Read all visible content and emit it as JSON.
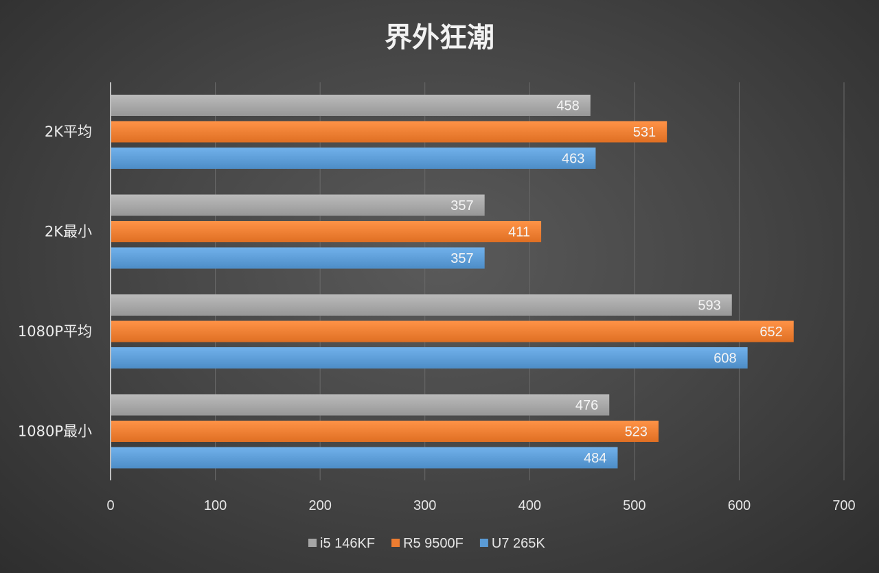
{
  "chart_data": {
    "type": "bar",
    "orientation": "horizontal",
    "title": "界外狂潮",
    "categories": [
      "2K平均",
      "2K最小",
      "1080P平均",
      "1080P最小"
    ],
    "series": [
      {
        "name": "i5 146KF",
        "color": "#a5a5a5",
        "values": [
          458,
          357,
          593,
          476
        ]
      },
      {
        "name": "R5 9500F",
        "color": "#ed7d31",
        "values": [
          531,
          411,
          652,
          523
        ]
      },
      {
        "name": "U7 265K",
        "color": "#5b9bd5",
        "values": [
          463,
          357,
          608,
          484
        ]
      }
    ],
    "xlim": [
      0,
      700
    ],
    "xticks": [
      0,
      100,
      200,
      300,
      400,
      500,
      600,
      700
    ],
    "xlabel": "",
    "ylabel": "",
    "grid": true,
    "legend_position": "bottom"
  }
}
